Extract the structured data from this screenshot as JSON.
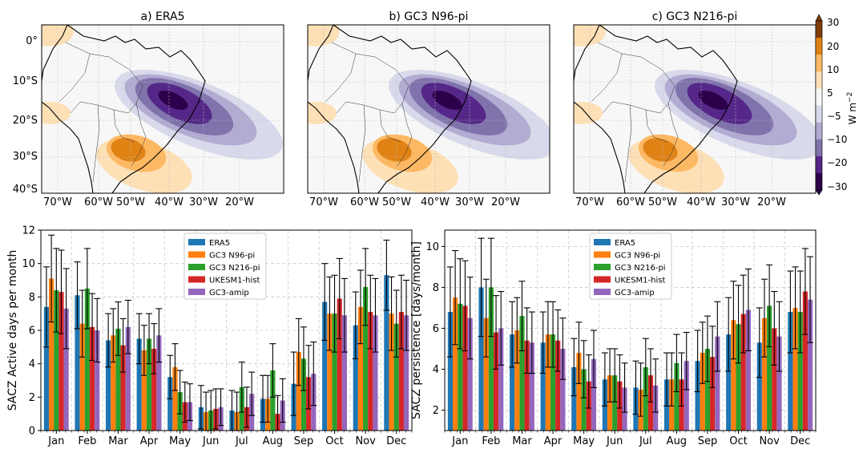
{
  "maps": {
    "panels": [
      {
        "title": "a) ERA5"
      },
      {
        "title": "b) GC3 N96-pi"
      },
      {
        "title": "c) GC3 N216-pi"
      }
    ],
    "lat_ticks": [
      "0°",
      "10°S",
      "20°S",
      "30°S",
      "40°S"
    ],
    "lon_ticks": [
      "70°W",
      "60°W",
      "50°W",
      "40°W",
      "30°W",
      "20°W"
    ],
    "colorbar": {
      "ticks": [
        "30",
        "20",
        "10",
        "5",
        "−5",
        "−10",
        "−20",
        "−30"
      ],
      "label": "W m",
      "label_sup": "−2",
      "colors": [
        "#7f3b08",
        "#e08214",
        "#fdb863",
        "#fee0b6",
        "#f7f7f7",
        "#d8daeb",
        "#b2abd2",
        "#8073ac",
        "#542788",
        "#2d004b"
      ]
    }
  },
  "chart_data": [
    {
      "type": "bar",
      "categories": [
        "Jan",
        "Feb",
        "Mar",
        "Apr",
        "May",
        "Jun",
        "Jul",
        "Aug",
        "Sep",
        "Oct",
        "Nov",
        "Dec"
      ],
      "ylabel": "SACZ Active days per month",
      "ylim": [
        0,
        12
      ],
      "yticks": [
        0,
        2,
        4,
        6,
        8,
        10,
        12
      ],
      "grid": true,
      "legend": "top-center",
      "series": [
        {
          "name": "ERA5",
          "color": "#1f77b4",
          "values": [
            7.4,
            8.1,
            5.4,
            5.5,
            3.2,
            1.4,
            1.2,
            1.9,
            2.8,
            7.7,
            6.3,
            9.3
          ],
          "err": [
            2.4,
            2.0,
            1.6,
            1.5,
            1.3,
            1.3,
            1.2,
            1.4,
            1.9,
            2.3,
            2.0,
            2.1
          ]
        },
        {
          "name": "GC3 N96-pi",
          "color": "#ff7f0e",
          "values": [
            9.1,
            6.4,
            5.7,
            4.8,
            3.8,
            1.1,
            1.1,
            1.9,
            4.7,
            7.0,
            7.4,
            7.0
          ],
          "err": [
            2.6,
            2.0,
            1.6,
            1.5,
            1.4,
            1.2,
            1.2,
            1.4,
            2.0,
            2.2,
            2.2,
            2.2
          ]
        },
        {
          "name": "GC3 N216-pi",
          "color": "#2ca02c",
          "values": [
            8.4,
            8.5,
            6.1,
            5.5,
            2.3,
            1.2,
            2.6,
            3.6,
            4.3,
            7.0,
            8.6,
            6.4
          ],
          "err": [
            2.5,
            2.4,
            1.6,
            1.5,
            1.3,
            1.2,
            1.5,
            1.6,
            1.9,
            2.3,
            2.3,
            2.0
          ]
        },
        {
          "name": "UKESM1-hist",
          "color": "#d62728",
          "values": [
            8.3,
            6.2,
            5.1,
            4.9,
            1.7,
            1.3,
            1.4,
            1.0,
            3.2,
            7.9,
            7.1,
            7.1
          ],
          "err": [
            2.5,
            2.0,
            1.6,
            1.5,
            1.2,
            1.2,
            1.2,
            1.1,
            1.9,
            2.4,
            2.2,
            2.2
          ]
        },
        {
          "name": "GC3-amip",
          "color": "#9467bd",
          "values": [
            7.3,
            6.0,
            6.2,
            5.7,
            1.7,
            1.4,
            2.2,
            1.8,
            3.4,
            6.9,
            6.9,
            6.9
          ],
          "err": [
            2.4,
            1.9,
            1.6,
            1.6,
            1.1,
            1.1,
            1.3,
            1.3,
            1.9,
            2.2,
            2.2,
            2.1
          ]
        }
      ]
    },
    {
      "type": "bar",
      "categories": [
        "Jan",
        "Feb",
        "Mar",
        "Apr",
        "May",
        "Jun",
        "Jul",
        "Aug",
        "Sep",
        "Oct",
        "Nov",
        "Dec"
      ],
      "ylabel": "SACZ persistence [days/month]",
      "ylim": [
        1,
        10.8
      ],
      "yticks": [
        2,
        4,
        6,
        8,
        10
      ],
      "grid": true,
      "legend": "top-center",
      "series": [
        {
          "name": "ERA5",
          "color": "#1f77b4",
          "values": [
            6.8,
            8.0,
            5.7,
            5.3,
            4.1,
            3.5,
            3.1,
            3.5,
            4.4,
            5.7,
            5.3,
            6.8
          ],
          "err": [
            2.2,
            2.4,
            1.6,
            1.5,
            1.4,
            1.3,
            1.3,
            1.3,
            1.5,
            1.8,
            1.7,
            2.0
          ]
        },
        {
          "name": "GC3 N96-pi",
          "color": "#ff7f0e",
          "values": [
            7.5,
            6.5,
            5.9,
            5.7,
            4.8,
            3.7,
            3.0,
            3.5,
            4.8,
            6.4,
            6.5,
            7.0
          ],
          "err": [
            2.3,
            1.9,
            1.6,
            1.6,
            1.5,
            1.3,
            1.3,
            1.3,
            1.5,
            1.9,
            1.9,
            2.0
          ]
        },
        {
          "name": "GC3 N216-pi",
          "color": "#2ca02c",
          "values": [
            7.2,
            8.0,
            6.6,
            5.7,
            4.0,
            3.7,
            4.1,
            4.3,
            5.0,
            6.2,
            7.1,
            6.8
          ],
          "err": [
            2.2,
            2.4,
            1.7,
            1.6,
            1.4,
            1.3,
            1.4,
            1.4,
            1.6,
            1.9,
            2.0,
            2.0
          ]
        },
        {
          "name": "UKESM1-hist",
          "color": "#d62728",
          "values": [
            7.1,
            5.8,
            5.4,
            5.4,
            3.4,
            3.4,
            3.7,
            3.5,
            4.6,
            6.7,
            6.0,
            7.8
          ],
          "err": [
            2.2,
            1.8,
            1.6,
            1.5,
            1.3,
            1.3,
            1.3,
            1.3,
            1.5,
            1.9,
            1.8,
            2.1
          ]
        },
        {
          "name": "GC3-amip",
          "color": "#9467bd",
          "values": [
            6.5,
            6.0,
            5.3,
            5.0,
            4.5,
            3.1,
            3.2,
            4.4,
            5.6,
            6.9,
            5.6,
            7.4
          ],
          "err": [
            2.0,
            1.8,
            1.5,
            1.5,
            1.4,
            1.2,
            1.3,
            1.4,
            1.7,
            2.0,
            1.7,
            2.1
          ]
        }
      ]
    }
  ]
}
